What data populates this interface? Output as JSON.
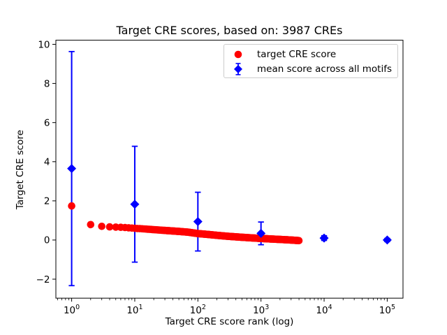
{
  "figure": {
    "background": "#ffffff",
    "text_color": "#000000"
  },
  "chart_data": {
    "type": "scatter",
    "title": "Target CRE scores, based on: 3987 CREs",
    "xlabel": "Target CRE score rank (log)",
    "ylabel": "Target CRE score",
    "x_scale": "log",
    "xlim_log10": [
      -0.25,
      5.25
    ],
    "ylim": [
      -2.97,
      10.21
    ],
    "x_major_tick_exponents": [
      0,
      1,
      2,
      3,
      4,
      5
    ],
    "x_tick_base": "10",
    "y_ticks": [
      -2,
      0,
      2,
      4,
      6,
      8,
      10
    ],
    "grid": false,
    "n_target_points": 3987,
    "series": [
      {
        "name": "target CRE score",
        "color": "#ff0000",
        "marker": "circle",
        "marker_radius_px": 5.3,
        "sampled_points": {
          "rank": [
            1,
            2,
            3,
            4,
            5,
            7,
            10,
            15,
            20,
            30,
            50,
            70,
            100,
            150,
            200,
            300,
            500,
            700,
            1000,
            1500,
            2000,
            3000,
            3987
          ],
          "score": [
            1.74,
            0.79,
            0.7,
            0.67,
            0.66,
            0.64,
            0.6,
            0.56,
            0.53,
            0.49,
            0.44,
            0.4,
            0.33,
            0.28,
            0.24,
            0.19,
            0.14,
            0.11,
            0.08,
            0.05,
            0.03,
            0.0,
            -0.03
          ]
        }
      },
      {
        "name": "mean score across all motifs",
        "color": "#0000ff",
        "marker": "diamond",
        "marker_half_px": 6.5,
        "x": [
          1,
          10,
          100,
          1000,
          10000,
          100000
        ],
        "mean": [
          3.65,
          1.83,
          0.94,
          0.34,
          0.1,
          0.0
        ],
        "err": [
          5.98,
          2.96,
          1.5,
          0.58,
          0.12,
          0.08
        ]
      }
    ],
    "legend_position": "upper right"
  },
  "legend": {
    "items": [
      {
        "label": "target CRE score",
        "color": "#ff0000",
        "marker": "circle"
      },
      {
        "label": "mean score across all motifs",
        "color": "#0000ff",
        "marker": "diamond-errorbar"
      }
    ]
  }
}
